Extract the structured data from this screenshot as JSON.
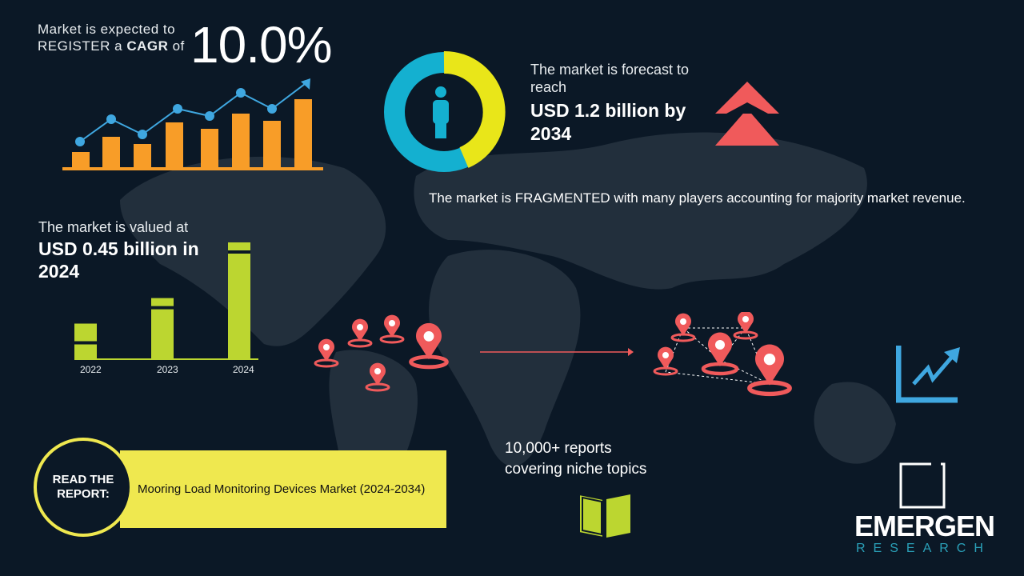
{
  "cagr": {
    "line1": "Market is expected to",
    "line2_prefix": "REGISTER a ",
    "line2_bold": "CAGR",
    "line2_suffix": " of",
    "value": "10.0%"
  },
  "forecast": {
    "label": "The market is forecast to reach",
    "value": "USD 1.2 billion by 2034"
  },
  "fragmented": "The market is FRAGMENTED with many players accounting for majority market revenue.",
  "valued": {
    "label": "The market is valued at",
    "value": "USD 0.45 billion in 2024"
  },
  "chart_data": {
    "type": "bar",
    "categories": [
      "2022",
      "2023",
      "2024"
    ],
    "values": [
      0.3,
      0.52,
      1.0
    ],
    "color": "#bcd630"
  },
  "report": {
    "cta": "READ THE REPORT:",
    "title": "Mooring Load Monitoring Devices Market (2024-2034)"
  },
  "reports_count": {
    "line1": "10,000+ reports",
    "line2": "covering niche topics"
  },
  "logo": {
    "name": "EMERGEN",
    "sub": "RESEARCH"
  },
  "colors": {
    "background": "#0b1826",
    "orange": "#f89d28",
    "blue": "#3fa7e0",
    "yellow": "#efe84f",
    "red": "#f05a5b",
    "green": "#bcd630",
    "teal": "#14b0d0"
  }
}
